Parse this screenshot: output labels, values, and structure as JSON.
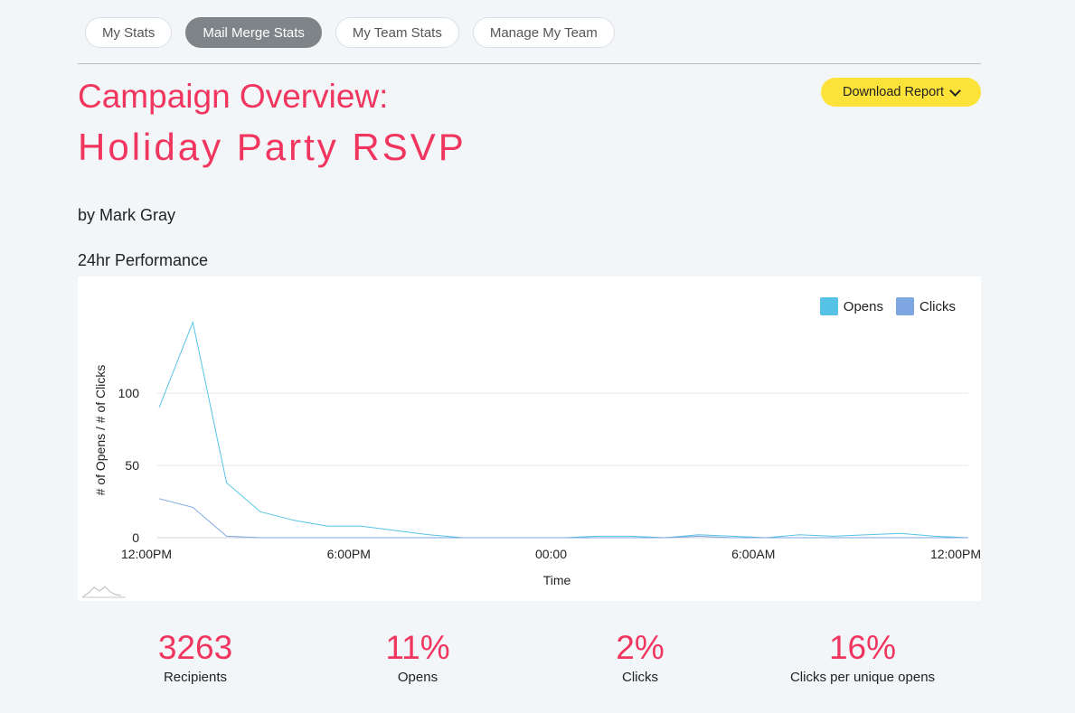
{
  "nav": {
    "tabs": [
      {
        "label": "My Stats",
        "active": false
      },
      {
        "label": "Mail Merge Stats",
        "active": true
      },
      {
        "label": "My Team Stats",
        "active": false
      },
      {
        "label": "Manage My Team",
        "active": false
      }
    ]
  },
  "header": {
    "title_line1": "Campaign Overview:",
    "title_line2": "Holiday Party RSVP",
    "download_label": "Download Report",
    "author": "by Mark Gray"
  },
  "performance": {
    "section_title": "24hr Performance"
  },
  "chart_data": {
    "type": "line",
    "xlabel": "Time",
    "ylabel": "# of Opens / # of Clicks",
    "ylim": [
      0,
      150
    ],
    "yticks": [
      0,
      50,
      100
    ],
    "xlim": [
      0,
      24
    ],
    "xticks": [
      {
        "value": 0,
        "label": "12:00PM"
      },
      {
        "value": 6,
        "label": "6:00PM"
      },
      {
        "value": 12,
        "label": "00:00"
      },
      {
        "value": 18,
        "label": "6:00AM"
      },
      {
        "value": 24,
        "label": "12:00PM"
      }
    ],
    "grid": true,
    "legend_position": "top-right",
    "series": [
      {
        "name": "Opens",
        "color": "#56c3e6",
        "points": [
          [
            0,
            90
          ],
          [
            1,
            149
          ],
          [
            2,
            38
          ],
          [
            3,
            18
          ],
          [
            4,
            12
          ],
          [
            5,
            8
          ],
          [
            6,
            8
          ],
          [
            7,
            5
          ],
          [
            8,
            2
          ],
          [
            9,
            0
          ],
          [
            10,
            0
          ],
          [
            11,
            0
          ],
          [
            12,
            0
          ],
          [
            13,
            1
          ],
          [
            14,
            1
          ],
          [
            15,
            0
          ],
          [
            16,
            2
          ],
          [
            17,
            1
          ],
          [
            18,
            0
          ],
          [
            19,
            2
          ],
          [
            20,
            1
          ],
          [
            21,
            2
          ],
          [
            22,
            3
          ],
          [
            23,
            1
          ],
          [
            24,
            0
          ]
        ]
      },
      {
        "name": "Clicks",
        "color": "#7ea6e0",
        "points": [
          [
            0,
            27
          ],
          [
            1,
            21
          ],
          [
            2,
            1
          ],
          [
            3,
            0
          ],
          [
            4,
            0
          ],
          [
            5,
            0
          ],
          [
            6,
            0
          ],
          [
            7,
            0
          ],
          [
            8,
            0
          ],
          [
            9,
            0
          ],
          [
            10,
            0
          ],
          [
            11,
            0
          ],
          [
            12,
            0
          ],
          [
            13,
            0
          ],
          [
            14,
            0
          ],
          [
            15,
            0
          ],
          [
            16,
            1
          ],
          [
            17,
            0
          ],
          [
            18,
            0
          ],
          [
            19,
            0
          ],
          [
            20,
            0
          ],
          [
            21,
            0
          ],
          [
            22,
            0
          ],
          [
            23,
            0
          ],
          [
            24,
            0
          ]
        ]
      }
    ]
  },
  "stats": [
    {
      "value": "3263",
      "label": "Recipients"
    },
    {
      "value": "11%",
      "label": "Opens"
    },
    {
      "value": "2%",
      "label": "Clicks"
    },
    {
      "value": "16%",
      "label": "Clicks per unique opens"
    }
  ],
  "colors": {
    "accent": "#f0365f",
    "button": "#fde23a",
    "active_tab": "#7e8488"
  }
}
